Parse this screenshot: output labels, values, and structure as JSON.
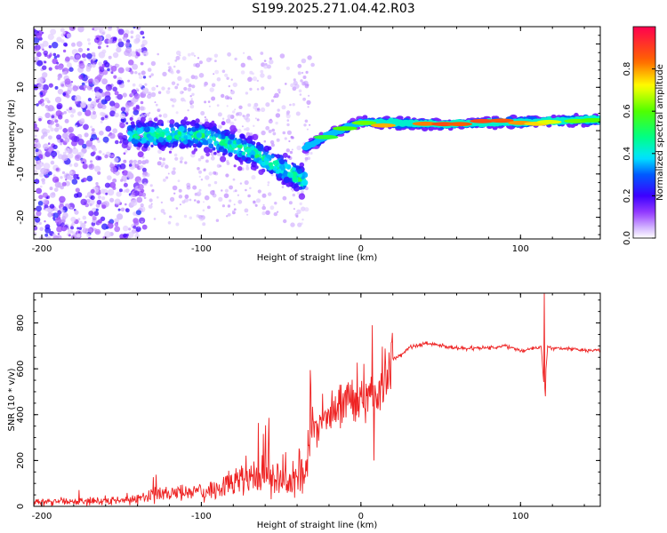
{
  "title": "S199.2025.271.04.42.R03",
  "chart_data": [
    {
      "type": "heatmap",
      "name": "spectrogram",
      "xlabel": "Height of straight line (km)",
      "ylabel": "Frequency (Hz)",
      "xlim": [
        -205,
        150
      ],
      "ylim": [
        -25,
        24
      ],
      "x_ticks": [
        -200,
        -100,
        0,
        100
      ],
      "y_ticks": [
        -20,
        -10,
        0,
        10,
        20
      ],
      "colorbar": {
        "label": "Normalized spectral amplitude",
        "range": [
          0,
          1
        ],
        "ticks": [
          0.0,
          0.2,
          0.4,
          0.6,
          0.8
        ]
      },
      "features": [
        {
          "region": "noise",
          "x_range": [
            -205,
            -140
          ],
          "freq_range": [
            -25,
            24
          ],
          "amplitude": "low"
        },
        {
          "region": "scattered echoes",
          "x_range": [
            -145,
            -35
          ],
          "center_freq_hz": [
            -1,
            -6,
            -12
          ],
          "amplitude": "medium"
        },
        {
          "region": "main line",
          "x_range": [
            -35,
            150
          ],
          "center_freq_hz_at": [
            [
              -35,
              -4
            ],
            [
              -20,
              -1
            ],
            [
              0,
              2
            ],
            [
              50,
              1.5
            ],
            [
              100,
              2
            ],
            [
              150,
              2.5
            ]
          ],
          "amplitude": "high"
        }
      ]
    },
    {
      "type": "line",
      "name": "snr",
      "xlabel": "Height of straight line (km)",
      "ylabel": "SNR (10 * v/v)",
      "xlim": [
        -205,
        150
      ],
      "ylim": [
        0,
        930
      ],
      "x_ticks": [
        -200,
        -100,
        0,
        100
      ],
      "y_ticks": [
        0,
        200,
        400,
        600,
        800
      ],
      "series": [
        {
          "name": "SNR",
          "color": "#ee2222",
          "x": [
            -205,
            -180,
            -160,
            -140,
            -130,
            -120,
            -110,
            -100,
            -90,
            -80,
            -70,
            -60,
            -50,
            -40,
            -35,
            -30,
            -25,
            -20,
            -15,
            -10,
            -5,
            0,
            5,
            10,
            15,
            20,
            25,
            30,
            35,
            40,
            50,
            60,
            70,
            80,
            90,
            100,
            110,
            113,
            115,
            117,
            120,
            130,
            140,
            150
          ],
          "values": [
            20,
            20,
            25,
            30,
            45,
            60,
            55,
            60,
            85,
            110,
            120,
            130,
            110,
            120,
            180,
            350,
            380,
            420,
            430,
            450,
            470,
            480,
            500,
            470,
            580,
            640,
            660,
            690,
            700,
            710,
            700,
            690,
            690,
            690,
            700,
            680,
            690,
            700,
            490,
            700,
            690,
            690,
            680,
            680
          ]
        }
      ],
      "spikes": [
        {
          "x": 7,
          "value": 790
        },
        {
          "x": 8,
          "value": 200
        },
        {
          "x": 115,
          "value": 940
        },
        {
          "x": 115.5,
          "value": 480
        }
      ]
    }
  ]
}
